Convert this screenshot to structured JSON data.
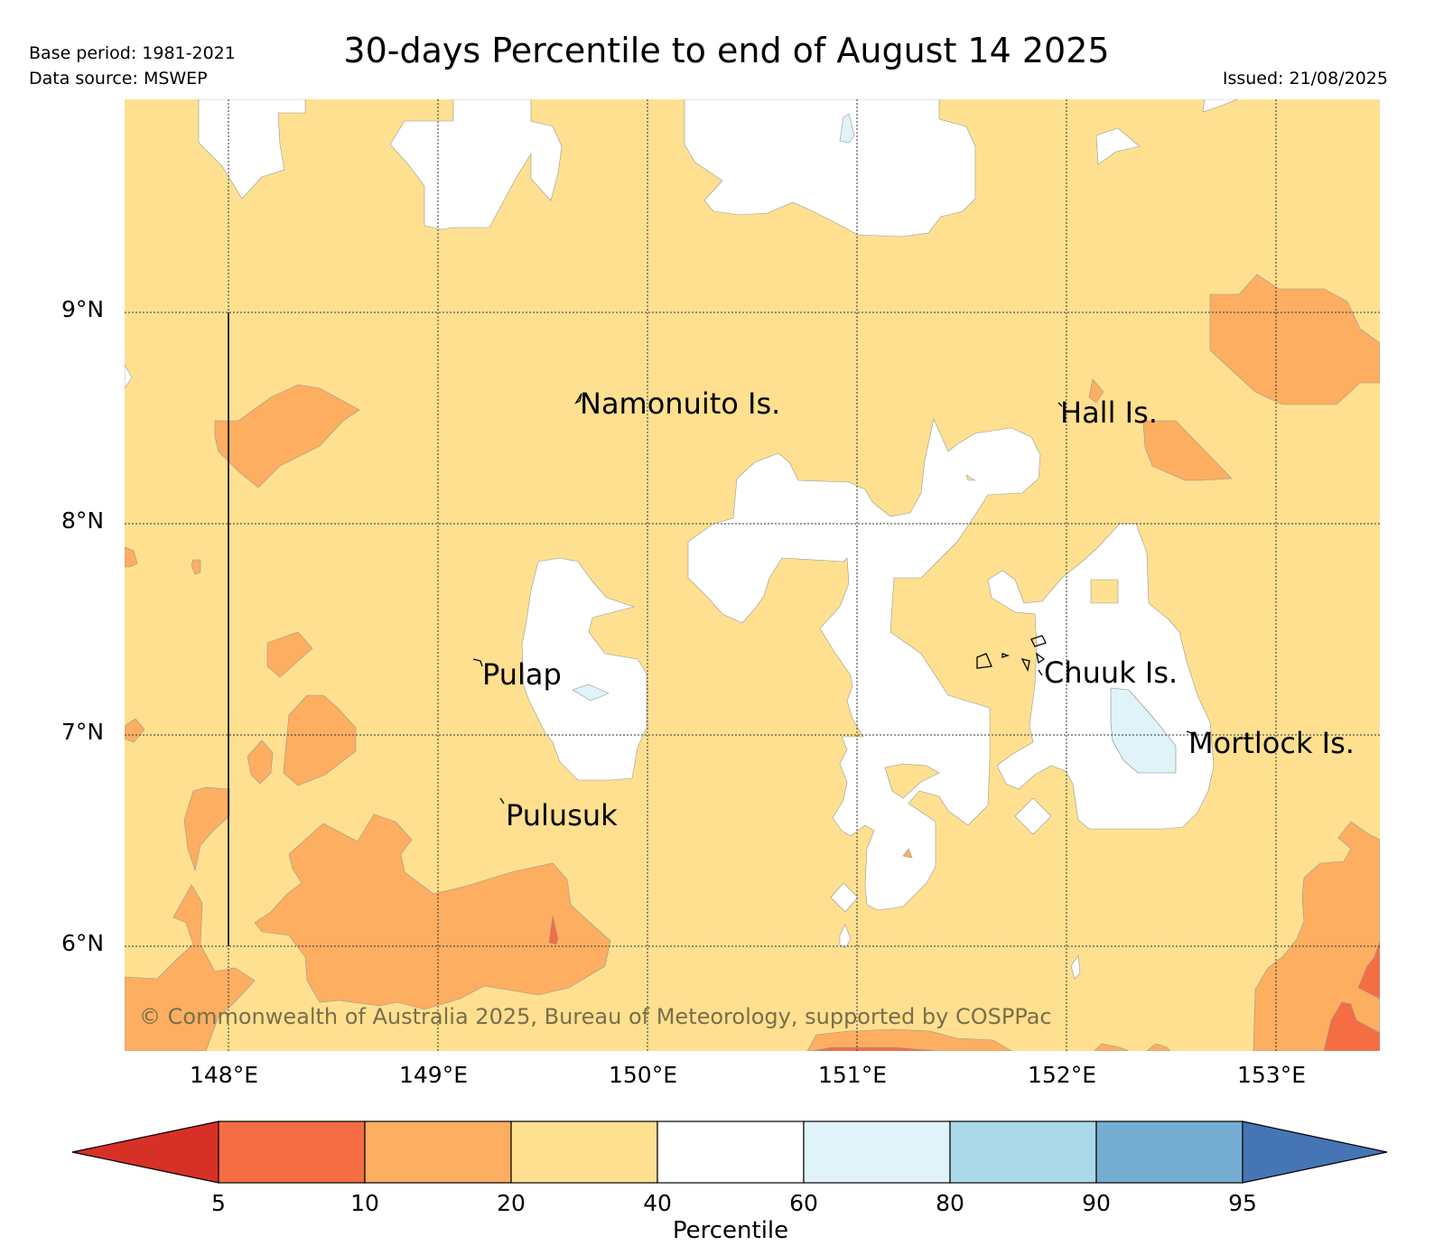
{
  "header": {
    "title": "30-days Percentile to end of August 14 2025",
    "base_period": "Base period: 1981-2021",
    "data_source": "Data source: MSWEP",
    "issued": "Issued: 21/08/2025"
  },
  "map": {
    "lat_labels": [
      "9°N",
      "8°N",
      "7°N",
      "6°N"
    ],
    "lon_labels": [
      "148°E",
      "149°E",
      "150°E",
      "151°E",
      "152°E",
      "153°E"
    ],
    "places": [
      {
        "name": "Namonuito Is."
      },
      {
        "name": "Hall Is."
      },
      {
        "name": "Pulap"
      },
      {
        "name": "Chuuk Is."
      },
      {
        "name": "Mortlock Is."
      },
      {
        "name": "Pulusuk"
      }
    ],
    "copyright": "© Commonwealth of Australia 2025, Bureau of Meteorology, supported by COSPPac"
  },
  "colorbar": {
    "label": "Percentile",
    "ticks": [
      "5",
      "10",
      "20",
      "40",
      "60",
      "80",
      "90",
      "95"
    ],
    "colors": {
      "below_5": "#d73027",
      "5_10": "#f46d43",
      "10_20": "#fdae61",
      "20_40": "#fee090",
      "40_60": "#ffffff",
      "60_80": "#e0f3f8",
      "80_90": "#abd9e9",
      "90_95": "#74add1",
      "above_95": "#4575b4"
    }
  }
}
